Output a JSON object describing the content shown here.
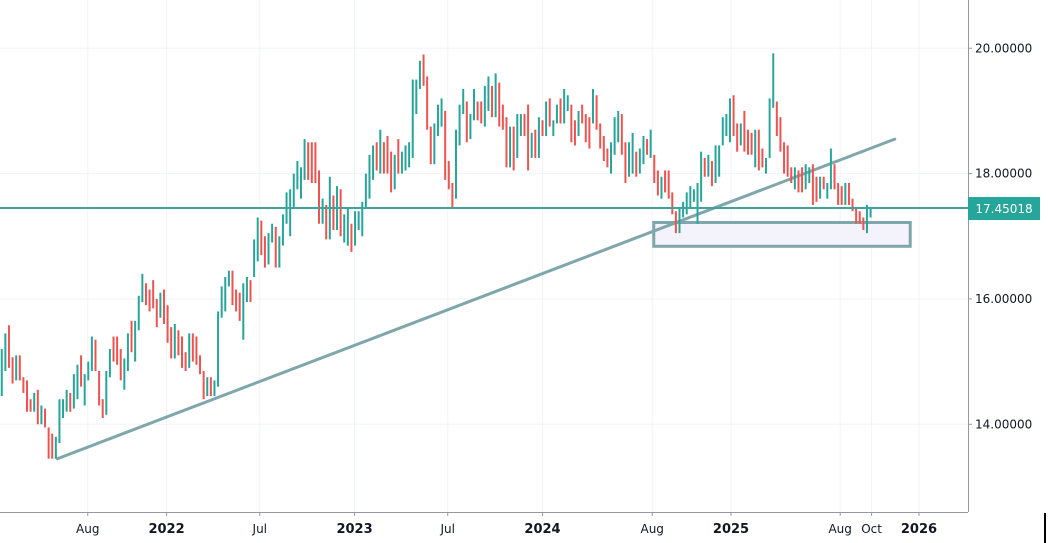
{
  "chart_data": {
    "type": "candlestick",
    "interval": "1W",
    "first_bar_date": "2021-02-15",
    "colors": {
      "up": "#26a69a",
      "down": "#ef5350",
      "price_line": "#3fa29c",
      "trendline": "#7fa6ab",
      "zone_fill": "#f4f3fb",
      "zone_stroke": "#7fa6ab"
    },
    "ylim": [
      12.6,
      20.77
    ],
    "y_ticks": [
      {
        "value": 20,
        "label": "20.00000"
      },
      {
        "value": 18,
        "label": "18.00000"
      },
      {
        "value": 16,
        "label": "16.00000"
      },
      {
        "value": 14,
        "label": "14.00000"
      }
    ],
    "x_ticks": [
      {
        "date": "2021-08-01",
        "label": "Aug",
        "year": false
      },
      {
        "date": "2022-01-01",
        "label": "2022",
        "year": true
      },
      {
        "date": "2022-07-01",
        "label": "Jul",
        "year": false
      },
      {
        "date": "2023-01-01",
        "label": "2023",
        "year": true
      },
      {
        "date": "2023-07-01",
        "label": "Jul",
        "year": false
      },
      {
        "date": "2024-01-01",
        "label": "2024",
        "year": true
      },
      {
        "date": "2024-08-01",
        "label": "Aug",
        "year": false
      },
      {
        "date": "2025-01-01",
        "label": "2025",
        "year": true
      },
      {
        "date": "2025-08-01",
        "label": "Aug",
        "year": false
      },
      {
        "date": "2025-10-01",
        "label": "Oct",
        "year": false
      },
      {
        "date": "2026-01-01",
        "label": "2026",
        "year": true
      }
    ],
    "last_price": 17.45018,
    "last_price_label": "17.45018",
    "trendline": {
      "start": {
        "date": "2021-06-03",
        "price": 13.45
      },
      "end": {
        "date": "2025-11-15",
        "price": 18.55
      }
    },
    "support_zone": {
      "start_date": "2024-08-04",
      "end_date": "2025-12-15",
      "top": 17.22,
      "bottom": 16.84
    },
    "bars_open_close": [
      [
        14.45,
        15.2
      ],
      [
        14.85,
        15.45
      ],
      [
        15.58,
        14.9
      ],
      [
        15.07,
        14.65
      ],
      [
        14.7,
        15.1
      ],
      [
        15.1,
        14.7
      ],
      [
        14.75,
        14.5
      ],
      [
        14.7,
        14.2
      ],
      [
        14.4,
        14.2
      ],
      [
        14.2,
        14.5
      ],
      [
        14.55,
        14.0
      ],
      [
        14.0,
        14.3
      ],
      [
        14.25,
        13.95
      ],
      [
        13.95,
        13.45
      ],
      [
        13.85,
        13.45
      ],
      [
        13.45,
        13.8
      ],
      [
        13.7,
        14.4
      ],
      [
        14.1,
        14.4
      ],
      [
        14.2,
        14.55
      ],
      [
        14.5,
        14.2
      ],
      [
        14.25,
        14.8
      ],
      [
        14.4,
        14.95
      ],
      [
        15.1,
        14.6
      ],
      [
        14.3,
        14.8
      ],
      [
        14.7,
        15.0
      ],
      [
        14.85,
        15.4
      ],
      [
        15.35,
        14.85
      ],
      [
        14.85,
        14.3
      ],
      [
        14.4,
        14.1
      ],
      [
        14.15,
        14.85
      ],
      [
        14.75,
        15.2
      ],
      [
        15.4,
        15.0
      ],
      [
        15.4,
        14.95
      ],
      [
        15.2,
        14.7
      ],
      [
        14.55,
        15.05
      ],
      [
        14.85,
        15.45
      ],
      [
        15.65,
        15.15
      ],
      [
        15.0,
        15.65
      ],
      [
        15.5,
        16.05
      ],
      [
        15.95,
        16.4
      ],
      [
        16.25,
        15.9
      ],
      [
        16.15,
        15.8
      ],
      [
        16.3,
        15.85
      ],
      [
        16.0,
        15.55
      ],
      [
        15.7,
        16.1
      ],
      [
        16.15,
        15.6
      ],
      [
        15.9,
        15.3
      ],
      [
        15.55,
        15.05
      ],
      [
        15.05,
        15.6
      ],
      [
        15.5,
        15.1
      ],
      [
        15.4,
        14.9
      ],
      [
        15.15,
        14.85
      ],
      [
        14.9,
        15.45
      ],
      [
        15.45,
        15.0
      ],
      [
        15.4,
        14.95
      ],
      [
        15.1,
        14.8
      ],
      [
        14.85,
        14.4
      ],
      [
        14.45,
        14.75
      ],
      [
        14.75,
        14.45
      ],
      [
        14.45,
        14.7
      ],
      [
        14.6,
        15.8
      ],
      [
        15.7,
        16.2
      ],
      [
        15.8,
        16.35
      ],
      [
        16.2,
        16.45
      ],
      [
        16.45,
        15.9
      ],
      [
        16.15,
        15.8
      ],
      [
        16.1,
        15.65
      ],
      [
        15.35,
        16.25
      ],
      [
        15.95,
        16.35
      ],
      [
        16.3,
        15.95
      ],
      [
        16.35,
        16.95
      ],
      [
        16.6,
        17.3
      ],
      [
        17.25,
        16.7
      ],
      [
        17.0,
        16.5
      ],
      [
        16.55,
        17.05
      ],
      [
        16.9,
        17.2
      ],
      [
        17.15,
        16.5
      ],
      [
        16.5,
        17.0
      ],
      [
        16.85,
        17.35
      ],
      [
        17.2,
        17.7
      ],
      [
        17.0,
        17.75
      ],
      [
        17.45,
        18.0
      ],
      [
        17.75,
        18.2
      ],
      [
        17.6,
        18.1
      ],
      [
        17.9,
        18.55
      ],
      [
        18.5,
        17.9
      ],
      [
        18.5,
        17.85
      ],
      [
        18.5,
        17.85
      ],
      [
        18.05,
        17.2
      ],
      [
        17.2,
        17.6
      ],
      [
        17.5,
        16.95
      ],
      [
        16.95,
        17.95
      ],
      [
        17.65,
        17.1
      ],
      [
        17.1,
        17.8
      ],
      [
        17.75,
        17.0
      ],
      [
        16.9,
        17.35
      ],
      [
        16.85,
        17.45
      ],
      [
        17.2,
        16.75
      ],
      [
        16.85,
        17.4
      ],
      [
        17.1,
        17.4
      ],
      [
        17.0,
        17.55
      ],
      [
        17.45,
        18.0
      ],
      [
        17.6,
        18.3
      ],
      [
        17.9,
        18.45
      ],
      [
        18.5,
        18.05
      ],
      [
        18.0,
        18.7
      ],
      [
        18.5,
        18.0
      ],
      [
        18.6,
        18.0
      ],
      [
        18.35,
        17.7
      ],
      [
        17.75,
        18.3
      ],
      [
        18.55,
        18.0
      ],
      [
        18.0,
        18.35
      ],
      [
        18.05,
        18.45
      ],
      [
        18.1,
        18.5
      ],
      [
        18.25,
        19.5
      ],
      [
        18.95,
        19.5
      ],
      [
        19.35,
        19.8
      ],
      [
        19.9,
        19.4
      ],
      [
        19.55,
        18.7
      ],
      [
        18.75,
        18.15
      ],
      [
        18.15,
        18.8
      ],
      [
        18.6,
        19.1
      ],
      [
        18.75,
        19.2
      ],
      [
        19.0,
        17.9
      ],
      [
        18.2,
        17.75
      ],
      [
        17.85,
        17.45
      ],
      [
        17.6,
        18.7
      ],
      [
        18.45,
        19.1
      ],
      [
        18.95,
        19.35
      ],
      [
        19.15,
        18.5
      ],
      [
        18.55,
        18.95
      ],
      [
        18.85,
        19.35
      ],
      [
        19.15,
        18.85
      ],
      [
        19.15,
        18.8
      ],
      [
        18.75,
        19.4
      ],
      [
        19.0,
        19.55
      ],
      [
        19.4,
        18.9
      ],
      [
        18.9,
        19.6
      ],
      [
        19.45,
        18.75
      ],
      [
        19.1,
        18.7
      ],
      [
        18.9,
        18.1
      ],
      [
        18.1,
        18.75
      ],
      [
        18.75,
        18.05
      ],
      [
        18.25,
        18.95
      ],
      [
        18.6,
        18.95
      ],
      [
        18.95,
        18.6
      ],
      [
        19.1,
        18.05
      ],
      [
        18.25,
        18.65
      ],
      [
        18.7,
        18.25
      ],
      [
        18.25,
        18.9
      ],
      [
        18.85,
        18.6
      ],
      [
        18.6,
        19.15
      ],
      [
        19.2,
        18.75
      ],
      [
        18.6,
        18.85
      ],
      [
        18.8,
        19.1
      ],
      [
        19.2,
        18.8
      ],
      [
        18.8,
        19.35
      ],
      [
        19.0,
        19.25
      ],
      [
        19.1,
        18.5
      ],
      [
        18.85,
        18.45
      ],
      [
        18.6,
        19.0
      ],
      [
        19.1,
        18.8
      ],
      [
        18.95,
        18.5
      ],
      [
        18.9,
        18.4
      ],
      [
        18.8,
        19.35
      ],
      [
        19.25,
        18.7
      ],
      [
        18.8,
        18.4
      ],
      [
        18.6,
        18.2
      ],
      [
        18.4,
        18.1
      ],
      [
        18.0,
        18.5
      ],
      [
        18.3,
        18.9
      ],
      [
        18.5,
        19.0
      ],
      [
        18.95,
        18.3
      ],
      [
        18.5,
        17.85
      ],
      [
        17.95,
        18.5
      ],
      [
        18.0,
        18.65
      ],
      [
        18.35,
        17.95
      ],
      [
        18.0,
        18.4
      ],
      [
        18.15,
        18.6
      ],
      [
        18.55,
        18.3
      ],
      [
        18.25,
        18.7
      ],
      [
        18.3,
        17.85
      ],
      [
        18.05,
        17.65
      ],
      [
        17.6,
        17.95
      ],
      [
        18.05,
        17.7
      ],
      [
        18.05,
        17.6
      ],
      [
        17.7,
        17.35
      ],
      [
        17.4,
        17.05
      ],
      [
        17.05,
        17.45
      ],
      [
        17.3,
        17.55
      ],
      [
        17.35,
        17.7
      ],
      [
        17.45,
        17.8
      ],
      [
        17.55,
        17.75
      ],
      [
        17.2,
        17.85
      ],
      [
        17.55,
        18.35
      ],
      [
        18.25,
        17.95
      ],
      [
        17.95,
        18.3
      ],
      [
        18.2,
        17.8
      ],
      [
        17.85,
        18.45
      ],
      [
        17.95,
        18.45
      ],
      [
        18.45,
        18.9
      ],
      [
        18.6,
        18.95
      ],
      [
        18.5,
        19.2
      ],
      [
        19.25,
        18.6
      ],
      [
        18.8,
        18.35
      ],
      [
        18.45,
        18.8
      ],
      [
        19.0,
        18.35
      ],
      [
        18.7,
        18.3
      ],
      [
        18.65,
        18.3
      ],
      [
        18.1,
        18.7
      ],
      [
        18.7,
        18.05
      ],
      [
        18.4,
        18.1
      ],
      [
        18.0,
        18.25
      ],
      [
        18.25,
        19.2
      ],
      [
        19.05,
        19.92
      ],
      [
        19.15,
        18.6
      ],
      [
        18.9,
        18.35
      ],
      [
        18.5,
        18.0
      ],
      [
        18.45,
        17.95
      ],
      [
        18.1,
        17.85
      ],
      [
        17.75,
        18.1
      ],
      [
        18.05,
        17.7
      ],
      [
        18.1,
        17.7
      ],
      [
        17.75,
        18.15
      ],
      [
        17.85,
        18.1
      ],
      [
        18.15,
        17.5
      ],
      [
        17.95,
        17.55
      ],
      [
        17.6,
        17.95
      ],
      [
        17.95,
        17.75
      ],
      [
        17.6,
        17.85
      ],
      [
        17.75,
        18.4
      ],
      [
        18.15,
        17.75
      ],
      [
        17.85,
        17.5
      ],
      [
        17.8,
        17.5
      ],
      [
        17.5,
        17.85
      ],
      [
        17.85,
        17.5
      ],
      [
        17.6,
        17.4
      ],
      [
        17.45,
        17.2
      ],
      [
        17.4,
        17.2
      ],
      [
        17.3,
        17.1
      ],
      [
        17.05,
        17.5
      ],
      [
        17.3,
        17.45018
      ]
    ]
  }
}
